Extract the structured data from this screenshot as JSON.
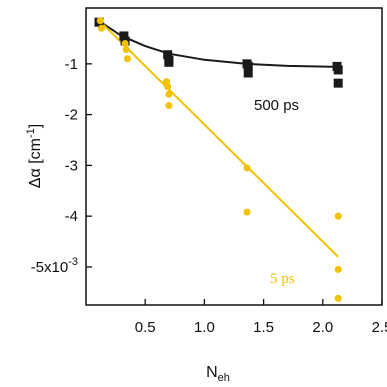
{
  "chart_data": {
    "type": "scatter",
    "xlim": [
      0,
      2.5
    ],
    "ylim": [
      -5.75,
      0.1
    ],
    "x_ticks": [
      {
        "value": 0.5,
        "label": "0.5"
      },
      {
        "value": 1.0,
        "label": "1.0"
      },
      {
        "value": 1.5,
        "label": "1.5"
      },
      {
        "value": 2.0,
        "label": "2.0"
      },
      {
        "value": 2.5,
        "label": "2.5"
      }
    ],
    "y_ticks": [
      {
        "value": -1,
        "label": "-1"
      },
      {
        "value": -2,
        "label": "-2"
      },
      {
        "value": -3,
        "label": "-3"
      },
      {
        "value": -4,
        "label": "-4"
      },
      {
        "value": -5,
        "label": "-5x10"
      }
    ],
    "y_exponent": "-3",
    "xlabel_main": "N",
    "xlabel_sub": "eh",
    "ylabel_main": "Δα [cm",
    "ylabel_sup": "-1",
    "ylabel_close": "]",
    "grid": false,
    "series": [
      {
        "name": "500 ps",
        "color": "#1a1a1a",
        "points": [
          {
            "x": 0.11,
            "y": -0.18
          },
          {
            "x": 0.32,
            "y": -0.45
          },
          {
            "x": 0.33,
            "y": -0.55
          },
          {
            "x": 0.69,
            "y": -0.82
          },
          {
            "x": 0.7,
            "y": -0.93
          },
          {
            "x": 0.7,
            "y": -0.97
          },
          {
            "x": 1.36,
            "y": -1.0
          },
          {
            "x": 1.37,
            "y": -1.05
          },
          {
            "x": 1.37,
            "y": -1.18
          },
          {
            "x": 2.12,
            "y": -1.05
          },
          {
            "x": 2.13,
            "y": -1.12
          },
          {
            "x": 2.13,
            "y": -1.38
          }
        ],
        "fit": [
          {
            "x": 0.1,
            "y": -0.14
          },
          {
            "x": 0.3,
            "y": -0.45
          },
          {
            "x": 0.5,
            "y": -0.65
          },
          {
            "x": 0.7,
            "y": -0.8
          },
          {
            "x": 1.0,
            "y": -0.92
          },
          {
            "x": 1.35,
            "y": -1.0
          },
          {
            "x": 1.7,
            "y": -1.04
          },
          {
            "x": 2.13,
            "y": -1.06
          }
        ]
      },
      {
        "name": "5 ps",
        "color": "#f2c200",
        "points": [
          {
            "x": 0.12,
            "y": -0.15
          },
          {
            "x": 0.13,
            "y": -0.3
          },
          {
            "x": 0.33,
            "y": -0.6
          },
          {
            "x": 0.34,
            "y": -0.72
          },
          {
            "x": 0.35,
            "y": -0.9
          },
          {
            "x": 0.68,
            "y": -1.35
          },
          {
            "x": 0.69,
            "y": -1.45
          },
          {
            "x": 0.7,
            "y": -1.6
          },
          {
            "x": 0.7,
            "y": -1.82
          },
          {
            "x": 1.36,
            "y": -3.05
          },
          {
            "x": 1.36,
            "y": -3.92
          },
          {
            "x": 2.13,
            "y": -4.0
          },
          {
            "x": 2.13,
            "y": -5.05
          },
          {
            "x": 2.13,
            "y": -5.62
          }
        ],
        "fit": [
          {
            "x": 0.1,
            "y": -0.12
          },
          {
            "x": 2.13,
            "y": -4.8
          }
        ]
      }
    ],
    "annotations": [
      {
        "text": "500 ps",
        "color": "#111111"
      },
      {
        "text": "5 ps",
        "color": "#f2c200"
      }
    ]
  }
}
